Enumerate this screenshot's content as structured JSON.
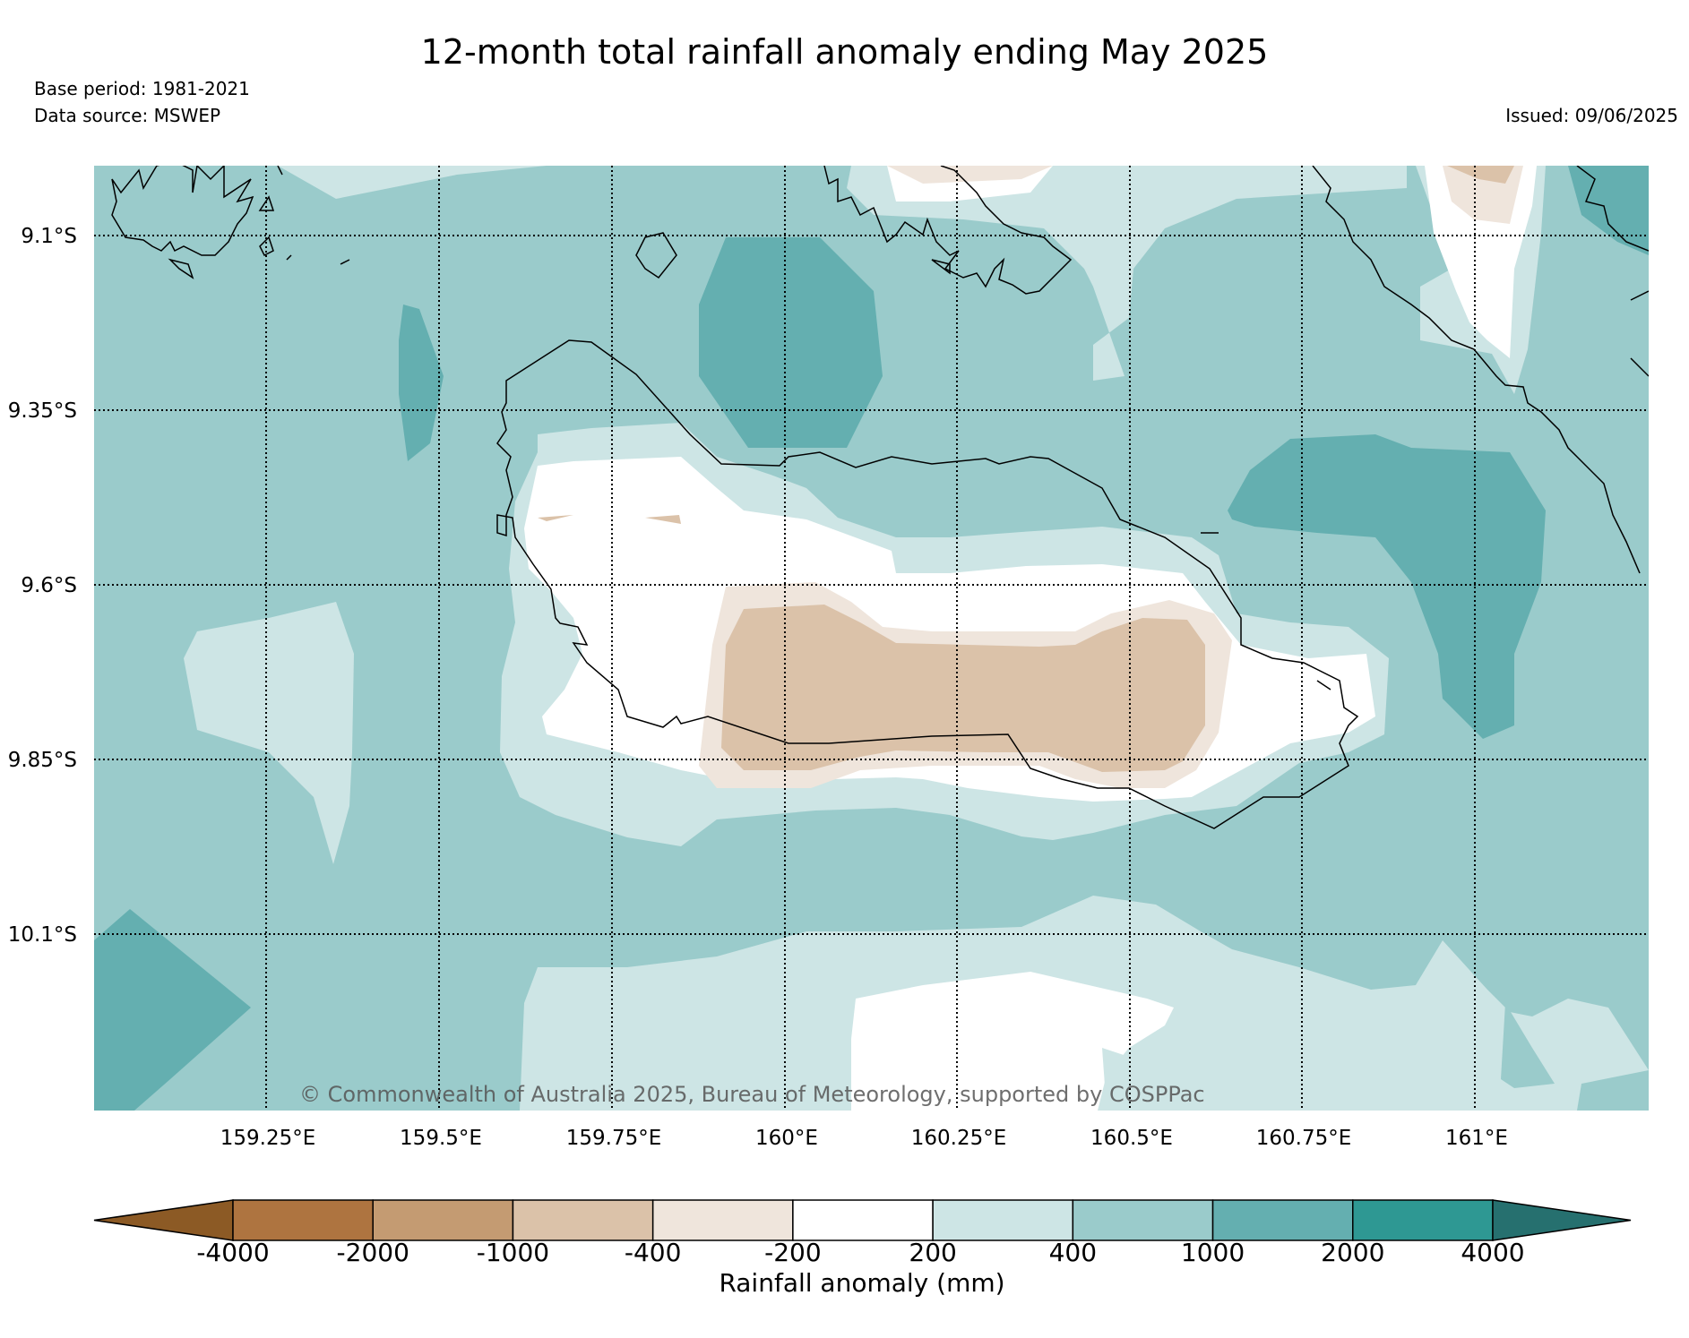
{
  "header": {
    "title": "12-month total rainfall anomaly ending May 2025",
    "base_period": "Base period: 1981-2021",
    "data_source": "Data source: MSWEP",
    "issued": "Issued: 09/06/2025"
  },
  "map": {
    "lat_labels": [
      "9.1°S",
      "9.35°S",
      "9.6°S",
      "9.85°S",
      "10.1°S"
    ],
    "lon_labels": [
      "159.25°E",
      "159.5°E",
      "159.75°E",
      "160°E",
      "160.25°E",
      "160.5°E",
      "160.75°E",
      "161°E"
    ],
    "copyright": "© Commonwealth of Australia 2025, Bureau of Meteorology, supported by COSPPac"
  },
  "colorbar": {
    "label": "Rainfall anomaly (mm)",
    "ticks": [
      "-4000",
      "-2000",
      "-1000",
      "-400",
      "-200",
      "200",
      "400",
      "1000",
      "2000",
      "4000"
    ],
    "colors": [
      "#8c5a25",
      "#ae7440",
      "#c49b72",
      "#dbc2a9",
      "#efe5dc",
      "#ffffff",
      "#cde5e5",
      "#9acbcb",
      "#64afb0",
      "#2e9893",
      "#26706f"
    ]
  }
}
